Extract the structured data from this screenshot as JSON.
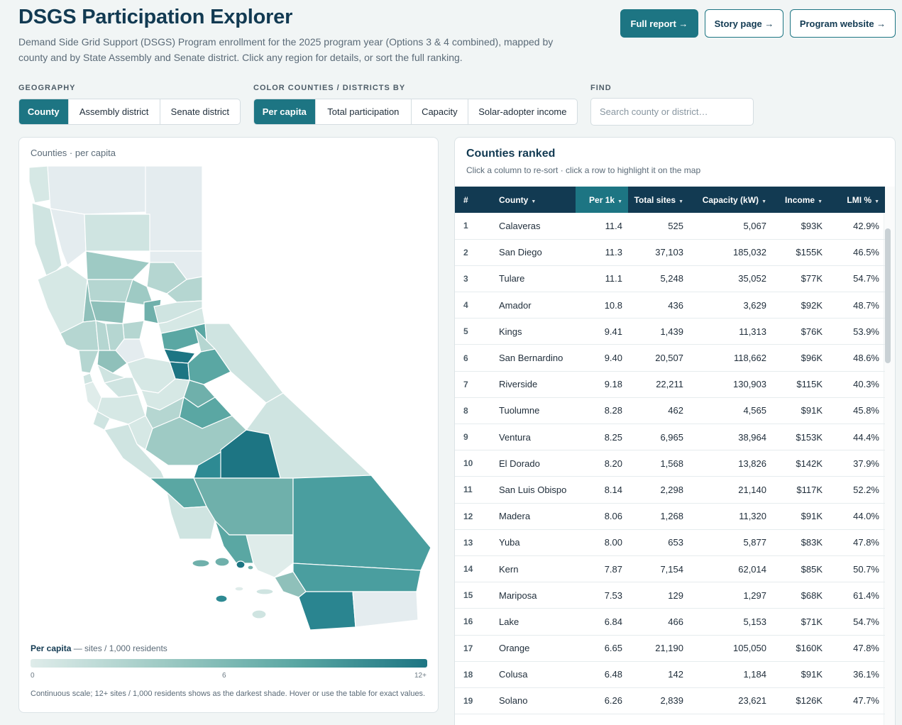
{
  "header": {
    "title": "DSGS Participation Explorer",
    "subtitle": "Demand Side Grid Support (DSGS) Program enrollment for the 2025 program year (Options 3 & 4 combined), mapped by county and by State Assembly and Senate district. Click any region for details, or sort the full ranking.",
    "links": [
      "Full report →",
      "Story page →",
      "Program website →"
    ]
  },
  "controls": {
    "geography_label": "GEOGRAPHY",
    "geography_options": [
      "County",
      "Assembly district",
      "Senate district"
    ],
    "geography_selected": "County",
    "color_label": "COLOR COUNTIES / DISTRICTS BY",
    "color_options": [
      "Per capita",
      "Total participation",
      "Capacity",
      "Solar-adopter income"
    ],
    "color_selected": "Per capita",
    "find_label": "FIND",
    "search_placeholder": "Search county or district…"
  },
  "map": {
    "title": "Counties · per capita",
    "legend_title": "Per capita",
    "legend_unit": " — sites / 1,000 residents",
    "legend_ticks": [
      "0",
      "6",
      "12+"
    ],
    "legend_note": "Continuous scale; 12+ sites / 1,000 residents shows as the darkest shade. Hover or use the table for exact values.",
    "colors": {
      "low": "#dfecea",
      "mid": "#9ecac4",
      "high": "#1d7583",
      "nodata": "#e4ecef"
    }
  },
  "table": {
    "title": "Counties ranked",
    "subtitle": "Click a column to re-sort · click a row to highlight it on the map",
    "columns": [
      "#",
      "County",
      "Per 1k",
      "Total sites",
      "Capacity (kW)",
      "Income",
      "LMI %"
    ],
    "sorted_column": "Per 1k",
    "rows": [
      [
        "1",
        "Calaveras",
        "11.4",
        "525",
        "5,067",
        "$93K",
        "42.9%"
      ],
      [
        "2",
        "San Diego",
        "11.3",
        "37,103",
        "185,032",
        "$155K",
        "46.5%"
      ],
      [
        "3",
        "Tulare",
        "11.1",
        "5,248",
        "35,052",
        "$77K",
        "54.7%"
      ],
      [
        "4",
        "Amador",
        "10.8",
        "436",
        "3,629",
        "$92K",
        "48.7%"
      ],
      [
        "5",
        "Kings",
        "9.41",
        "1,439",
        "11,313",
        "$76K",
        "53.9%"
      ],
      [
        "6",
        "San Bernardino",
        "9.40",
        "20,507",
        "118,662",
        "$96K",
        "48.6%"
      ],
      [
        "7",
        "Riverside",
        "9.18",
        "22,211",
        "130,903",
        "$115K",
        "40.3%"
      ],
      [
        "8",
        "Tuolumne",
        "8.28",
        "462",
        "4,565",
        "$91K",
        "45.8%"
      ],
      [
        "9",
        "Ventura",
        "8.25",
        "6,965",
        "38,964",
        "$153K",
        "44.4%"
      ],
      [
        "10",
        "El Dorado",
        "8.20",
        "1,568",
        "13,826",
        "$142K",
        "37.9%"
      ],
      [
        "11",
        "San Luis Obispo",
        "8.14",
        "2,298",
        "21,140",
        "$117K",
        "52.2%"
      ],
      [
        "12",
        "Madera",
        "8.06",
        "1,268",
        "11,320",
        "$91K",
        "44.0%"
      ],
      [
        "13",
        "Yuba",
        "8.00",
        "653",
        "5,877",
        "$83K",
        "47.8%"
      ],
      [
        "14",
        "Kern",
        "7.87",
        "7,154",
        "62,014",
        "$85K",
        "50.7%"
      ],
      [
        "15",
        "Mariposa",
        "7.53",
        "129",
        "1,297",
        "$68K",
        "61.4%"
      ],
      [
        "16",
        "Lake",
        "6.84",
        "466",
        "5,153",
        "$71K",
        "54.7%"
      ],
      [
        "17",
        "Orange",
        "6.65",
        "21,190",
        "105,050",
        "$160K",
        "47.8%"
      ],
      [
        "18",
        "Colusa",
        "6.48",
        "142",
        "1,184",
        "$91K",
        "36.1%"
      ],
      [
        "19",
        "Solano",
        "6.26",
        "2,839",
        "23,621",
        "$126K",
        "47.7%"
      ]
    ]
  }
}
